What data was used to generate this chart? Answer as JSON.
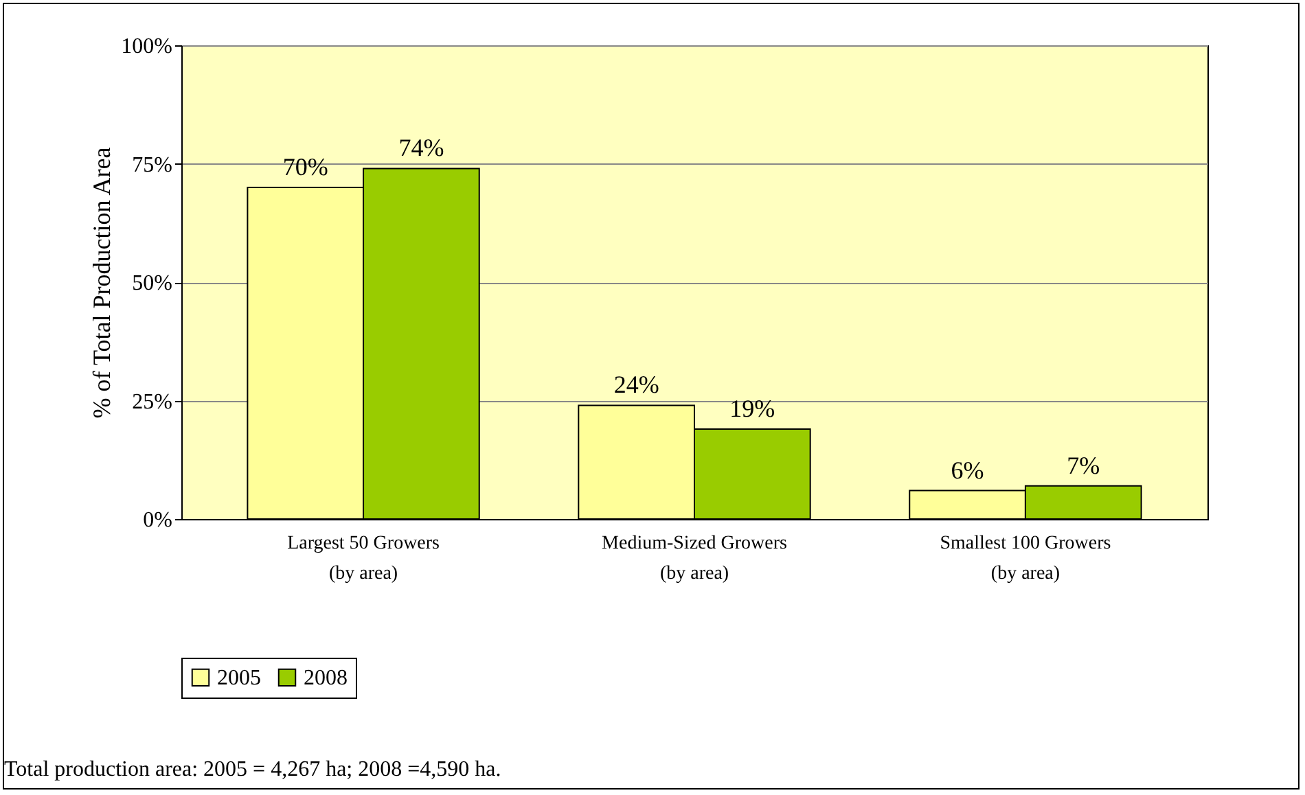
{
  "chart_data": {
    "type": "bar",
    "ylabel": "% of Total Production Area",
    "categories": [
      "Largest 50 Growers\n(by area)",
      "Medium-Sized Growers\n(by area)",
      "Smallest 100 Growers\n(by area)"
    ],
    "series": [
      {
        "name": "2005",
        "color": "#ffff99",
        "values": [
          70,
          24,
          6
        ],
        "value_labels": [
          "70%",
          "24%",
          "6%"
        ]
      },
      {
        "name": "2008",
        "color": "#99cc00",
        "values": [
          74,
          19,
          7
        ],
        "value_labels": [
          "74%",
          "19%",
          "7%"
        ]
      }
    ],
    "ylim": [
      0,
      100
    ],
    "yticks": [
      {
        "value": 0,
        "label": "0%"
      },
      {
        "value": 25,
        "label": "25%"
      },
      {
        "value": 50,
        "label": "50%"
      },
      {
        "value": 75,
        "label": "75%"
      },
      {
        "value": 100,
        "label": "100%"
      }
    ],
    "grid": "y",
    "legend": "bottom",
    "annotations": [
      "Total production area: 2005 = 4,267 ha; 2008 =4,590 ha."
    ]
  }
}
